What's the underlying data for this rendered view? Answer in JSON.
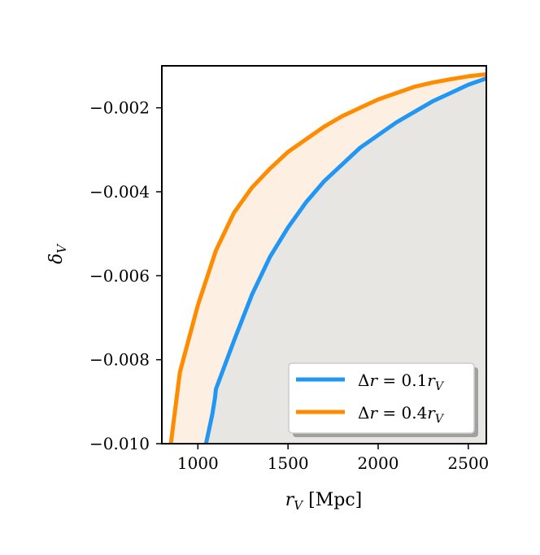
{
  "chart_data": {
    "type": "line",
    "xlabel": "r_V [Mpc]",
    "ylabel": "δ_V",
    "xlim": [
      800,
      2600
    ],
    "ylim": [
      -0.01,
      -0.001
    ],
    "xticks": [
      1000,
      1500,
      2000,
      2500
    ],
    "xtick_labels": [
      "1000",
      "1500",
      "2000",
      "2500"
    ],
    "yticks": [
      -0.01,
      -0.008,
      -0.006,
      -0.004,
      -0.002
    ],
    "ytick_labels": [
      "−0.010",
      "−0.008",
      "−0.006",
      "−0.004",
      "−0.002"
    ],
    "legend_position": "lower-right",
    "grid": false,
    "series": [
      {
        "name": "Δr = 0.1r_V",
        "color": "#2196f3",
        "fill_color": "#e8e6e2",
        "x": [
          1045,
          1080,
          1095,
          1100,
          1200,
          1300,
          1400,
          1500,
          1600,
          1700,
          1800,
          1900,
          2000,
          2100,
          2200,
          2300,
          2400,
          2500,
          2600
        ],
        "y": [
          -0.01,
          -0.0093,
          -0.0089,
          -0.0087,
          -0.00755,
          -0.00645,
          -0.00555,
          -0.00485,
          -0.00425,
          -0.00375,
          -0.00335,
          -0.00295,
          -0.00265,
          -0.00235,
          -0.0021,
          -0.00185,
          -0.00165,
          -0.00145,
          -0.0013
        ]
      },
      {
        "name": "Δr = 0.4r_V",
        "color": "#ff8c00",
        "fill_color": "#fdf0e2",
        "x": [
          850,
          900,
          1000,
          1100,
          1200,
          1300,
          1400,
          1500,
          1600,
          1700,
          1800,
          1900,
          2000,
          2100,
          2200,
          2300,
          2400,
          2500,
          2600
        ],
        "y": [
          -0.01,
          -0.0083,
          -0.0067,
          -0.0054,
          -0.0045,
          -0.0039,
          -0.00345,
          -0.00305,
          -0.00275,
          -0.00245,
          -0.0022,
          -0.002,
          -0.0018,
          -0.00165,
          -0.0015,
          -0.0014,
          -0.00132,
          -0.00125,
          -0.0012
        ]
      }
    ]
  }
}
